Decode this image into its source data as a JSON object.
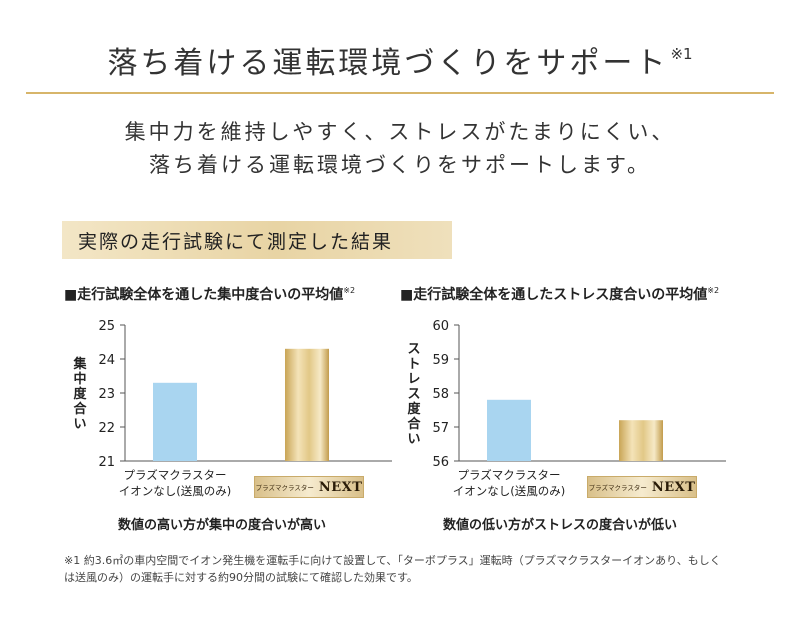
{
  "header": {
    "title": "落ち着ける運転環境づくりをサポート",
    "title_note": "※1",
    "lead_line1": "集中力を維持しやすく、ストレスがたまりにくい、",
    "lead_line2": "落ち着ける運転環境づくりをサポートします。"
  },
  "banner": {
    "text": "実際の走行試験にて測定した結果"
  },
  "badge": {
    "small": "プラズマクラスター",
    "big": "NEXT"
  },
  "footnote": "※1 約3.6㎥の車内空間でイオン発生機を運転手に向けて設置して、「ターボプラス」運転時（プラズマクラスターイオンあり、もしくは送風のみ）の運転手に対する約90分間の試験にて確認した効果です。",
  "colors": {
    "bar_blue": "#a9d5f0",
    "gold_dark": "#caa65a",
    "gold_light": "#f5e6bf",
    "rule": "#d7b56a"
  },
  "chart_data": [
    {
      "type": "bar",
      "title": "■走行試験全体を通した集中度合いの平均値",
      "title_note": "※2",
      "ylabel": "集中度合い",
      "ylim": [
        21,
        25
      ],
      "yticks": [
        "21",
        "22",
        "23",
        "24",
        "25"
      ],
      "categories": [
        "プラズマクラスターイオンなし(送風のみ)",
        "プラズマクラスターNEXT"
      ],
      "category_line1": "プラズマクラスター",
      "category_line2": "イオンなし(送風のみ)",
      "values": [
        23.3,
        24.3
      ],
      "caption": "数値の高い方が集中の度合いが高い"
    },
    {
      "type": "bar",
      "title": "■走行試験全体を通したストレス度合いの平均値",
      "title_note": "※2",
      "ylabel": "ストレス度合い",
      "ylim": [
        56,
        60
      ],
      "yticks": [
        "56",
        "57",
        "58",
        "59",
        "60"
      ],
      "categories": [
        "プラズマクラスターイオンなし(送風のみ)",
        "プラズマクラスターNEXT"
      ],
      "category_line1": "プラズマクラスター",
      "category_line2": "イオンなし(送風のみ)",
      "values": [
        57.8,
        57.2
      ],
      "caption": "数値の低い方がストレスの度合いが低い"
    }
  ]
}
